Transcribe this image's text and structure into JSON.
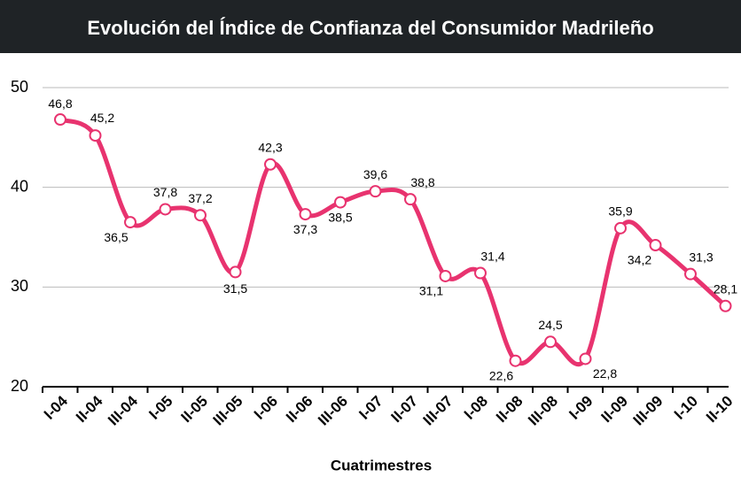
{
  "chart_data": {
    "type": "line",
    "title": "Evolución del Índice de Confianza del Consumidor Madrileño",
    "x_label": "Cuatrimestres",
    "categories": [
      "I-04",
      "II-04",
      "III-04",
      "I-05",
      "II-05",
      "III-05",
      "I-06",
      "II-06",
      "III-06",
      "I-07",
      "II-07",
      "III-07",
      "I-08",
      "II-08",
      "III-08",
      "I-09",
      "II-09",
      "III-09",
      "I-10",
      "II-10"
    ],
    "series": [
      {
        "color": "#e8336f",
        "values": [
          46.8,
          45.2,
          36.5,
          37.8,
          37.2,
          31.5,
          42.3,
          37.3,
          38.5,
          39.6,
          38.8,
          31.1,
          31.4,
          22.6,
          24.5,
          22.8,
          35.9,
          34.2,
          31.3,
          28.1
        ],
        "value_labels": [
          "46,8",
          "45,2",
          "36,5",
          "37,8",
          "37,2",
          "31,5",
          "42,3",
          "37,3",
          "38,5",
          "39,6",
          "38,8",
          "31,1",
          "31,4",
          "22,6",
          "24,5",
          "22,8",
          "35,9",
          "34,2",
          "31,3",
          "28,1"
        ]
      }
    ],
    "ylim": [
      20,
      50
    ],
    "yticks": [
      20,
      30,
      40,
      50
    ],
    "grid": true
  }
}
